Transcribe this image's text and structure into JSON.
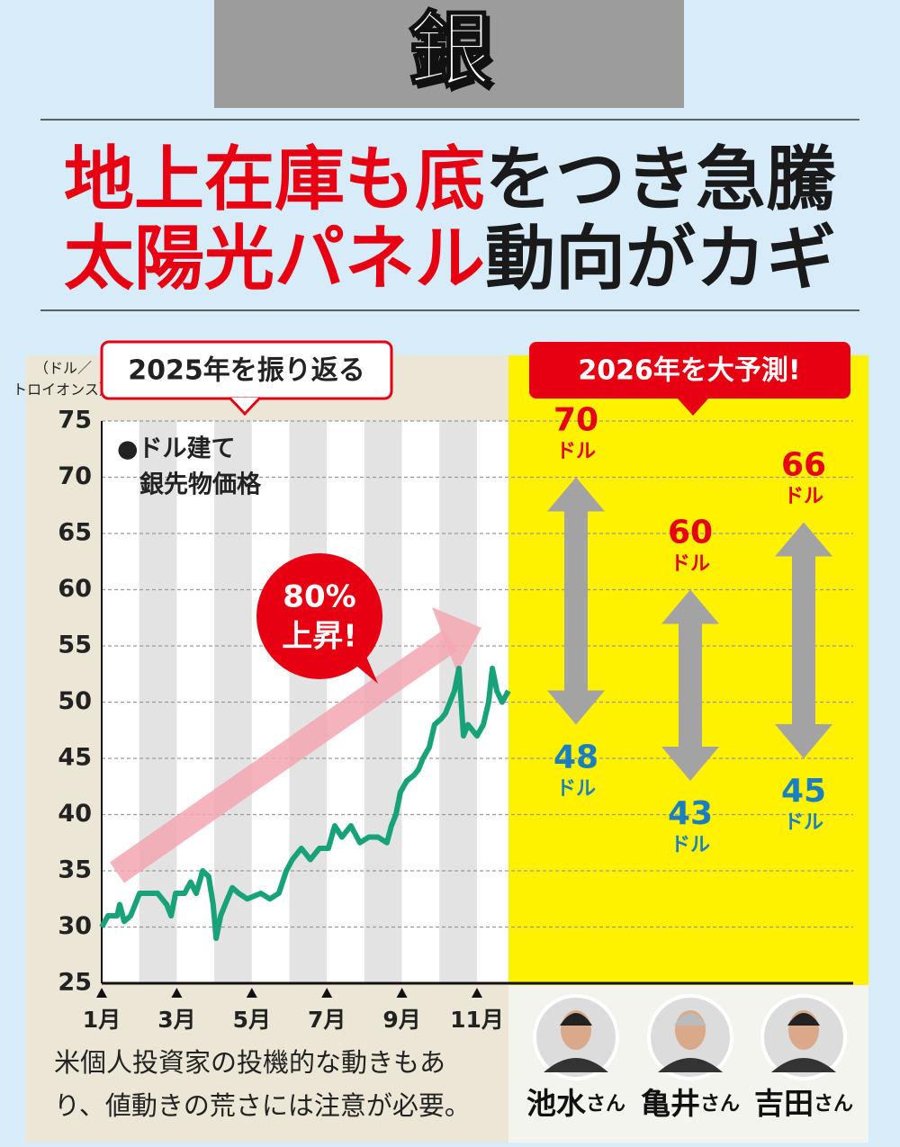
{
  "header": {
    "title": "銀"
  },
  "headline": {
    "lines": [
      [
        {
          "text": "地上在庫も底",
          "color": "#e60012"
        },
        {
          "text": "をつき急騰",
          "color": "#1a1a1a"
        }
      ],
      [
        {
          "text": "太陽光パネル",
          "color": "#e60012"
        },
        {
          "text": "動向がカギ",
          "color": "#1a1a1a"
        }
      ]
    ]
  },
  "chart_data": {
    "type": "line",
    "callout": "2025年を振り返る",
    "label_lines": [
      "●ドル建て",
      "銀先物価格"
    ],
    "y_unit_lines": [
      "（ドル／",
      "トロイオンス）"
    ],
    "annotation_lines": [
      "80%",
      "上昇!"
    ],
    "x": [
      1.0,
      1.17,
      1.41,
      1.48,
      1.6,
      1.77,
      1.89,
      2.01,
      2.25,
      2.49,
      2.73,
      2.85,
      2.97,
      3.21,
      3.37,
      3.52,
      3.69,
      3.85,
      3.97,
      4.05,
      4.17,
      4.29,
      4.48,
      4.65,
      4.88,
      5.24,
      5.48,
      5.72,
      5.92,
      6.08,
      6.32,
      6.56,
      6.8,
      7.04,
      7.21,
      7.4,
      7.64,
      7.88,
      8.12,
      8.36,
      8.6,
      8.72,
      8.84,
      8.96,
      9.13,
      9.32,
      9.44,
      9.56,
      9.73,
      9.87,
      10.04,
      10.16,
      10.28,
      10.4,
      10.52,
      10.64,
      10.76,
      11.0,
      11.17,
      11.31,
      11.41,
      11.53,
      11.67,
      11.84
    ],
    "series": [
      {
        "name": "銀先物価格",
        "color": "#17a27a",
        "values": [
          30,
          31,
          31,
          32,
          30.5,
          31,
          32,
          33,
          33,
          33,
          32,
          31,
          33,
          33,
          34,
          33,
          35,
          34.5,
          32,
          29,
          31,
          32,
          33.5,
          33,
          32.5,
          33,
          32.5,
          33,
          35,
          36,
          37,
          36,
          37,
          37,
          39,
          38,
          39,
          37.5,
          38,
          38,
          37.5,
          39,
          40,
          42,
          43,
          43.5,
          44,
          45,
          46,
          48,
          48.5,
          49,
          50,
          51,
          53,
          47,
          48,
          47,
          48,
          50,
          53,
          51,
          50,
          51
        ]
      }
    ],
    "xlim": [
      1,
      11.84
    ],
    "xticks": [
      {
        "value": 1,
        "label": "1月"
      },
      {
        "value": 3,
        "label": "3月"
      },
      {
        "value": 5,
        "label": "5月"
      },
      {
        "value": 7,
        "label": "7月"
      },
      {
        "value": 9,
        "label": "9月"
      },
      {
        "value": 11,
        "label": "11月"
      }
    ],
    "ylim": [
      25,
      75
    ],
    "yticks": [
      25,
      30,
      35,
      40,
      45,
      50,
      55,
      60,
      65,
      70,
      75
    ],
    "grid": true
  },
  "forecast": {
    "callout": "2026年を大予測!",
    "unit": "ドル",
    "suffix": "さん",
    "high_color": "#e60012",
    "low_color": "#1a7fc1",
    "people": [
      {
        "name": "池水",
        "high": 70,
        "low": 48
      },
      {
        "name": "亀井",
        "high": 60,
        "low": 43
      },
      {
        "name": "吉田",
        "high": 66,
        "low": 45
      }
    ]
  },
  "note": {
    "lines": [
      "米個人投資家の投機的な動きもあ",
      "り、値動きの荒さには注意が必要。"
    ]
  }
}
